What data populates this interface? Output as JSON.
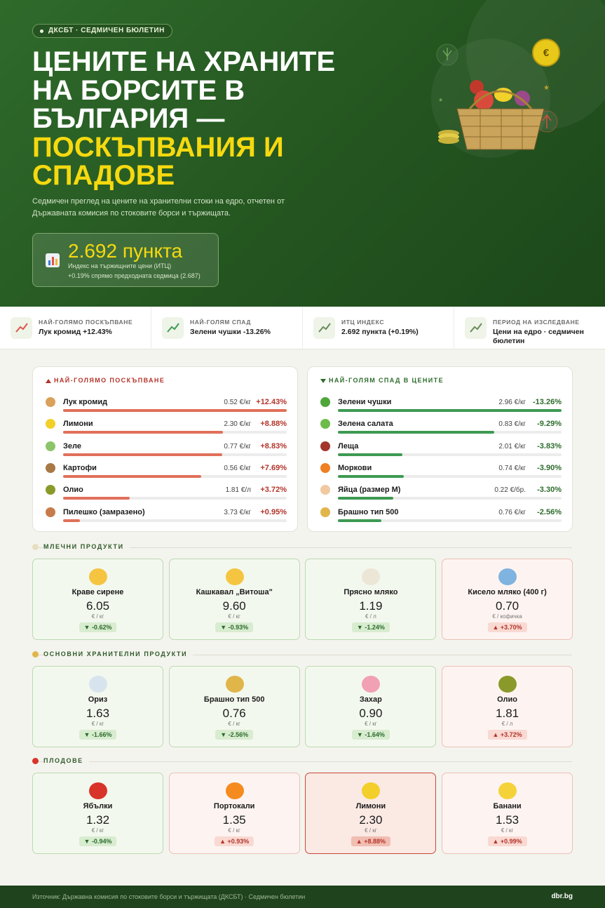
{
  "header": {
    "badge": "ДКСБТ · СЕДМИЧЕН БЮЛЕТИН",
    "title_lines": [
      "ЦЕНИТЕ НА ХРАНИТЕ",
      "НА БОРСИТЕ В",
      "БЪЛГАРИЯ —"
    ],
    "title_accent_lines": [
      "ПОСКЪПВАНИЯ И",
      "СПАДОВЕ"
    ],
    "subtitle_lines": [
      "Седмичен преглед на цените на хранителни стоки на едро, отчетен от",
      "Държавната комисия по стоковите борси и тържищата."
    ],
    "index": {
      "value": "2.692 пункта",
      "label": "Индекс на тържищните цени (ИТЦ)",
      "change": "+0.19% спрямо предходната седмица (2.687)"
    },
    "coin": "€"
  },
  "stats": [
    {
      "label": "НАЙ-ГОЛЯМО ПОСКЪПВАНЕ",
      "value": "Лук кромид +12.43%",
      "tone": "up"
    },
    {
      "label": "НАЙ-ГОЛЯМ СПАД",
      "value": "Зелени чушки -13.26%",
      "tone": "down"
    },
    {
      "label": "ИТЦ ИНДЕКС",
      "value": "2.692 пункта (+0.19%)",
      "tone": "neutral"
    },
    {
      "label": "ПЕРИОД НА ИЗСЛЕДВАНЕ",
      "value": "Цени на едро · седмичен бюлетин",
      "tone": "neutral"
    }
  ],
  "rises": {
    "title": "НАЙ-ГОЛЯМО ПОСКЪПВАНЕ",
    "color": "#e0705a",
    "items": [
      {
        "name": "Лук кромид",
        "price": "0.52 €/кг",
        "pct": 12.43,
        "pct_label": "+12.43%",
        "icon_color": "#d9a15a"
      },
      {
        "name": "Лимони",
        "price": "2.30 €/кг",
        "pct": 8.88,
        "pct_label": "+8.88%",
        "icon_color": "#f2cf2a"
      },
      {
        "name": "Зеле",
        "price": "0.77 €/кг",
        "pct": 8.83,
        "pct_label": "+8.83%",
        "icon_color": "#8cc46a"
      },
      {
        "name": "Картофи",
        "price": "0.56 €/кг",
        "pct": 7.69,
        "pct_label": "+7.69%",
        "icon_color": "#a87845"
      },
      {
        "name": "Олио",
        "price": "1.81 €/л",
        "pct": 3.72,
        "pct_label": "+3.72%",
        "icon_color": "#8a9a2a"
      },
      {
        "name": "Пилешко (замразено)",
        "price": "3.73 €/кг",
        "pct": 0.95,
        "pct_label": "+0.95%",
        "icon_color": "#c77b4a"
      }
    ]
  },
  "falls": {
    "title": "НАЙ-ГОЛЯМ СПАД В ЦЕНИТЕ",
    "color": "#3d9a52",
    "items": [
      {
        "name": "Зелени чушки",
        "price": "2.96 €/кг",
        "pct": -13.26,
        "pct_label": "-13.26%",
        "icon_color": "#4fa63a"
      },
      {
        "name": "Зелена салата",
        "price": "0.83 €/кг",
        "pct": -9.29,
        "pct_label": "-9.29%",
        "icon_color": "#6dbb4a"
      },
      {
        "name": "Леща",
        "price": "2.01 €/кг",
        "pct": -3.83,
        "pct_label": "-3.83%",
        "icon_color": "#a3362c"
      },
      {
        "name": "Моркови",
        "price": "0.74 €/кг",
        "pct": -3.9,
        "pct_label": "-3.90%",
        "icon_color": "#ef7f22"
      },
      {
        "name": "Яйца (размер М)",
        "price": "0.22 €/бр.",
        "pct": -3.3,
        "pct_label": "-3.30%",
        "icon_color": "#f0c9a0"
      },
      {
        "name": "Брашно тип 500",
        "price": "0.76 €/кг",
        "pct": -2.56,
        "pct_label": "-2.56%",
        "icon_color": "#e0b54a"
      }
    ]
  },
  "sections": [
    {
      "title": "МЛЕЧНИ ПРОДУКТИ",
      "items": [
        {
          "name": "Краве сирене",
          "price": "6.05",
          "unit": "€ / кг",
          "change": "▼ -0.62%",
          "trend": "down",
          "icon_color": "#f5c542"
        },
        {
          "name": "Кашкавал „Витоша\"",
          "price": "9.60",
          "unit": "€ / кг",
          "change": "▼ -0.93%",
          "trend": "down",
          "icon_color": "#f5c542"
        },
        {
          "name": "Прясно мляко",
          "price": "1.19",
          "unit": "€ / л",
          "change": "▼ -1.24%",
          "trend": "down",
          "icon_color": "#ece6d6"
        },
        {
          "name": "Кисело мляко (400 г)",
          "price": "0.70",
          "unit": "€ / кофичка",
          "change": "▲ +3.70%",
          "trend": "up",
          "icon_color": "#7fb3e0"
        }
      ]
    },
    {
      "title": "ОСНОВНИ ХРАНИТЕЛНИ ПРОДУКТИ",
      "items": [
        {
          "name": "Ориз",
          "price": "1.63",
          "unit": "€ / кг",
          "change": "▼ -1.66%",
          "trend": "down",
          "icon_color": "#d7e4ee"
        },
        {
          "name": "Брашно тип 500",
          "price": "0.76",
          "unit": "€ / кг",
          "change": "▼ -2.56%",
          "trend": "down",
          "icon_color": "#e0b54a"
        },
        {
          "name": "Захар",
          "price": "0.90",
          "unit": "€ / кг",
          "change": "▼ -1.64%",
          "trend": "down",
          "icon_color": "#f2a0b4"
        },
        {
          "name": "Олио",
          "price": "1.81",
          "unit": "€ / л",
          "change": "▲ +3.72%",
          "trend": "up",
          "icon_color": "#8a9a2a"
        }
      ]
    },
    {
      "title": "ПЛОДОВЕ",
      "items": [
        {
          "name": "Ябълки",
          "price": "1.32",
          "unit": "€ / кг",
          "change": "▼ -0.94%",
          "trend": "down",
          "icon_color": "#d8342a"
        },
        {
          "name": "Портокали",
          "price": "1.35",
          "unit": "€ / кг",
          "change": "▲ +0.93%",
          "trend": "up",
          "icon_color": "#f58a1f"
        },
        {
          "name": "Лимони",
          "price": "2.30",
          "unit": "€ / кг",
          "change": "▲ +8.88%",
          "trend": "up",
          "highlight": true,
          "icon_color": "#f2cf2a"
        },
        {
          "name": "Банани",
          "price": "1.53",
          "unit": "€ / кг",
          "change": "▲ +0.99%",
          "trend": "up",
          "icon_color": "#f5d23a"
        }
      ]
    }
  ],
  "footer": {
    "source": "Източник: Държавна комисия по стоковите борси и тържищата (ДКСБТ) · Седмичен бюлетин",
    "site": "dbr.bg"
  }
}
